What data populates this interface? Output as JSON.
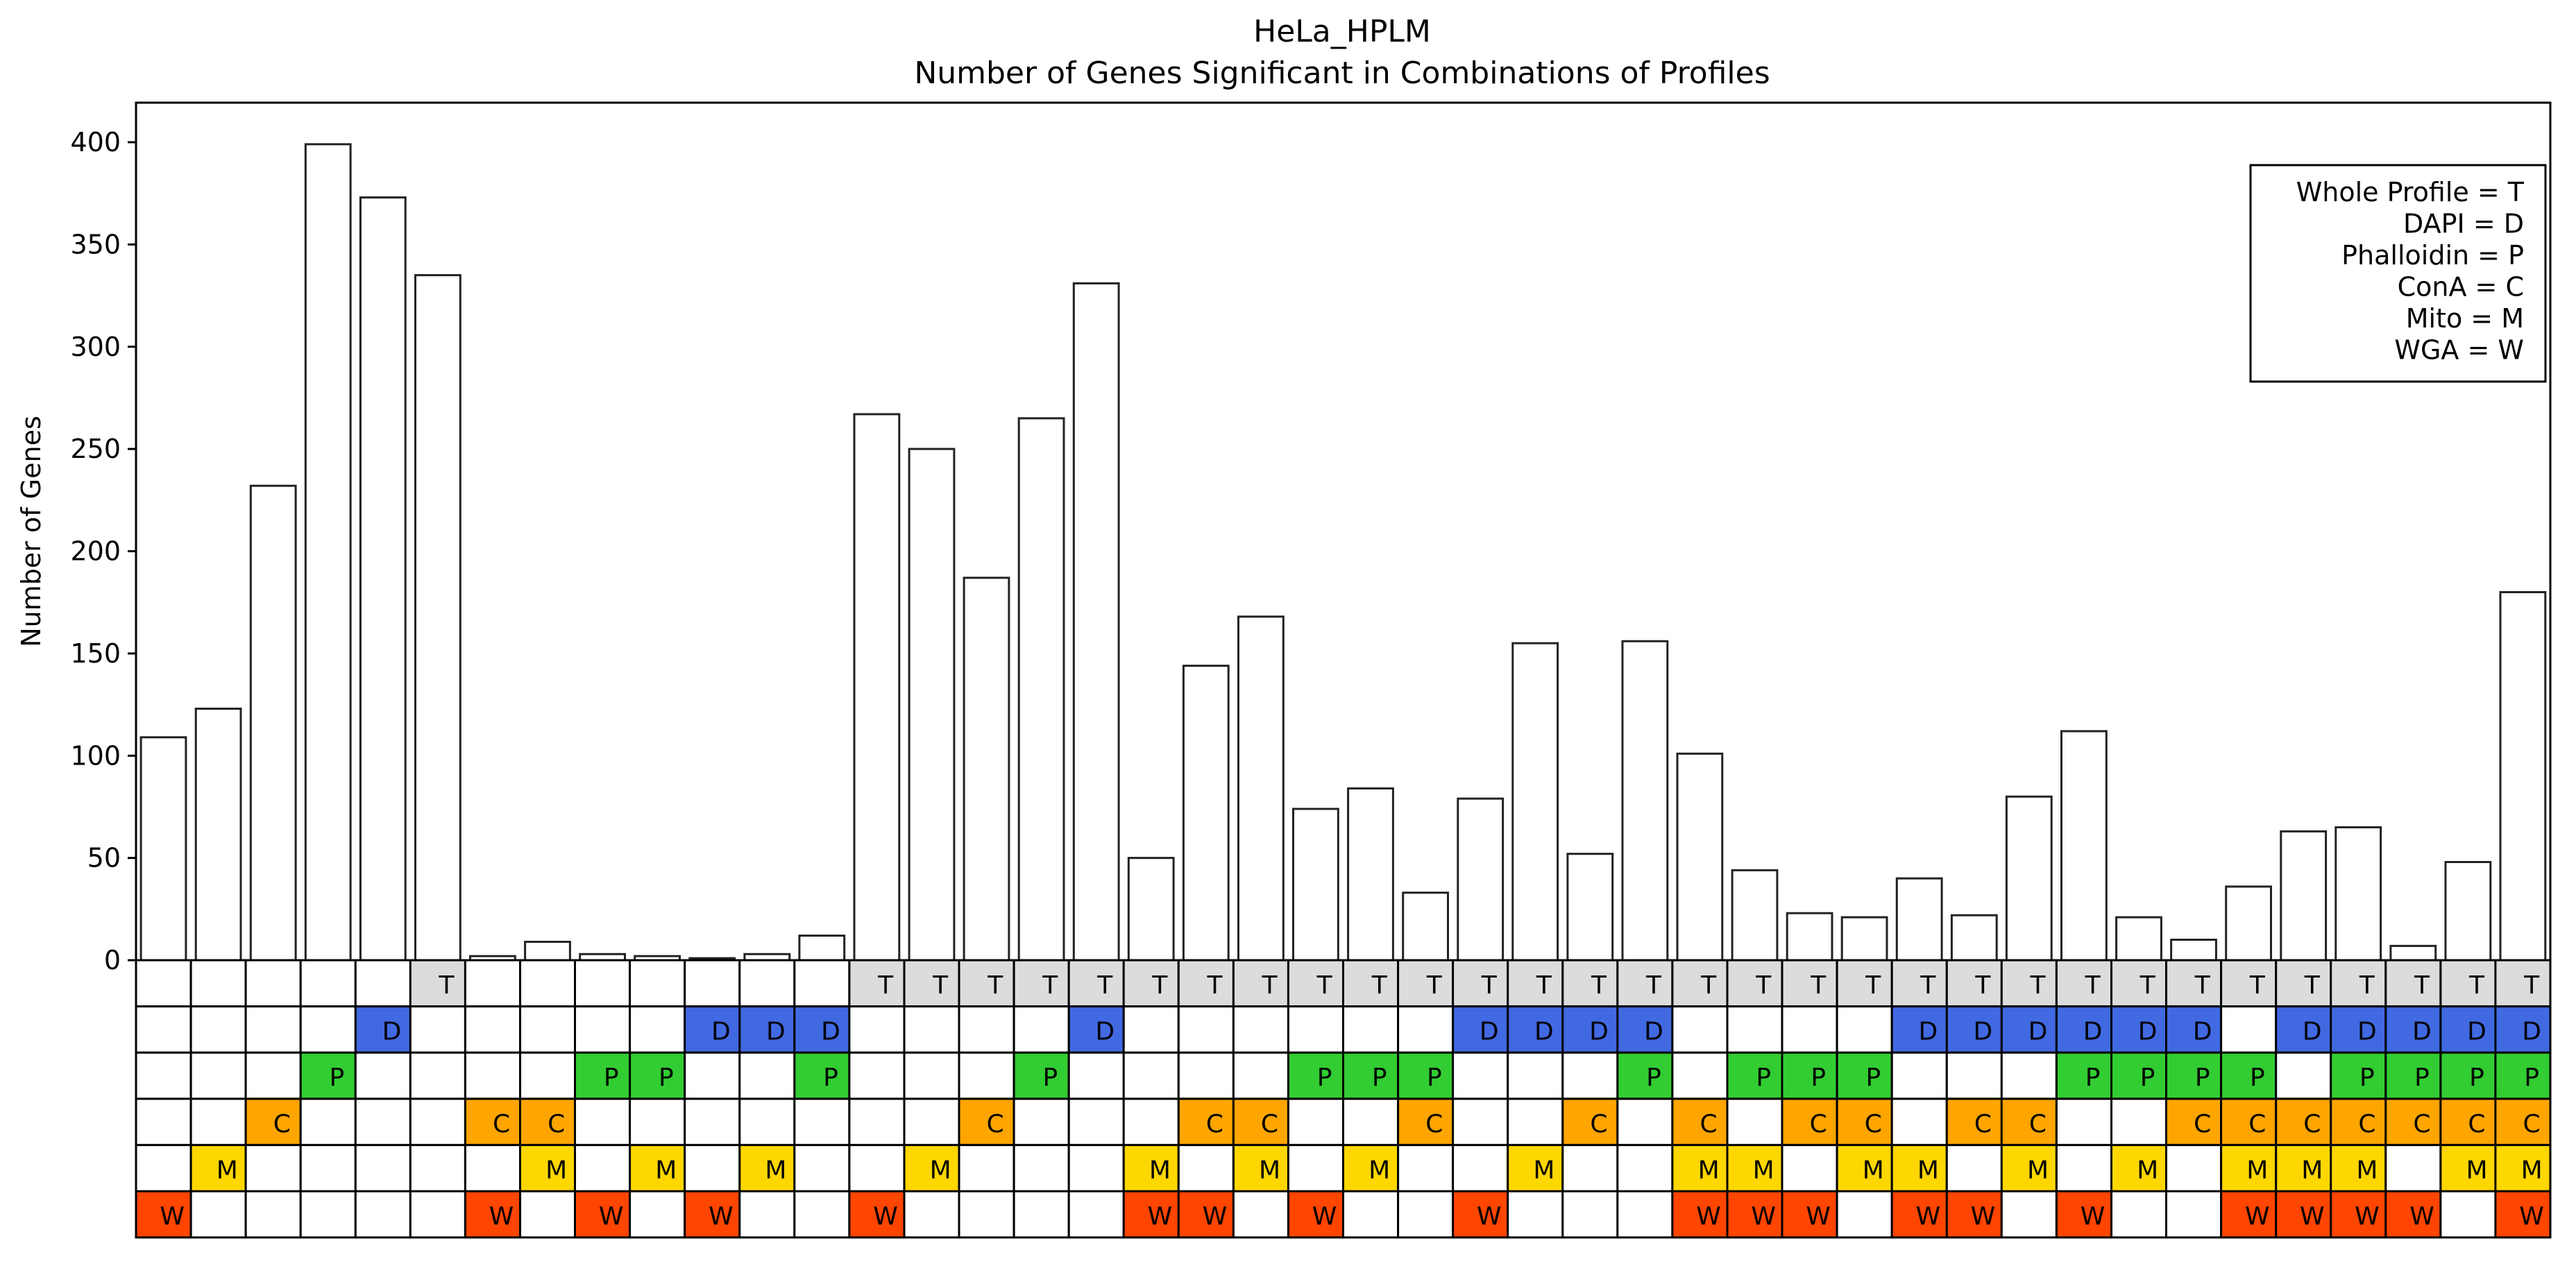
{
  "chart_data": {
    "type": "bar",
    "title": "HeLa_HPLM",
    "subtitle": "Number of Genes Significant in Combinations of Profiles",
    "ylabel": "Number of Genes",
    "xlabel": "",
    "ylim": [
      0,
      420
    ],
    "yticks": [
      0,
      50,
      100,
      150,
      200,
      250,
      300,
      350,
      400
    ],
    "grid": false,
    "legend_placement": "top-right",
    "legend": [
      "Whole Profile = T",
      "DAPI = D",
      "Phalloidin = P",
      "ConA = C",
      "Mito = M",
      "WGA = W"
    ],
    "profiles": [
      {
        "key": "T",
        "label": "Whole Profile",
        "color": "#DCDCDC"
      },
      {
        "key": "D",
        "label": "DAPI",
        "color": "#4169E1"
      },
      {
        "key": "P",
        "label": "Phalloidin",
        "color": "#32CD32"
      },
      {
        "key": "C",
        "label": "ConA",
        "color": "#FFA500"
      },
      {
        "key": "M",
        "label": "Mito",
        "color": "#FFD700"
      },
      {
        "key": "W",
        "label": "WGA",
        "color": "#FF4500"
      }
    ],
    "values": [
      109,
      123,
      232,
      399,
      373,
      335,
      2,
      9,
      3,
      2,
      1,
      3,
      12,
      267,
      250,
      187,
      265,
      331,
      50,
      144,
      168,
      74,
      84,
      33,
      79,
      155,
      52,
      156,
      101,
      44,
      23,
      21,
      40,
      22,
      80,
      112,
      21,
      10,
      36,
      63,
      65,
      7,
      48,
      180
    ],
    "combinations": [
      "W",
      "M",
      "C",
      "P",
      "D",
      "T",
      "CW",
      "CM",
      "PW",
      "PM",
      "DW",
      "DM",
      "DP",
      "TW",
      "TM",
      "TC",
      "TP",
      "TD",
      "TMW",
      "TCW",
      "TCM",
      "TPW",
      "TPM",
      "TPC",
      "TDW",
      "TDM",
      "TDC",
      "TDP",
      "TCMW",
      "TPMW",
      "TPCW",
      "TPCM",
      "TDMW",
      "TDCW",
      "TDCM",
      "TDPW",
      "TDPM",
      "TDPC",
      "TPCMW",
      "TDCMW",
      "TDPCMW",
      "TDPCW",
      "TDPCM",
      "TDPMCW"
    ]
  }
}
